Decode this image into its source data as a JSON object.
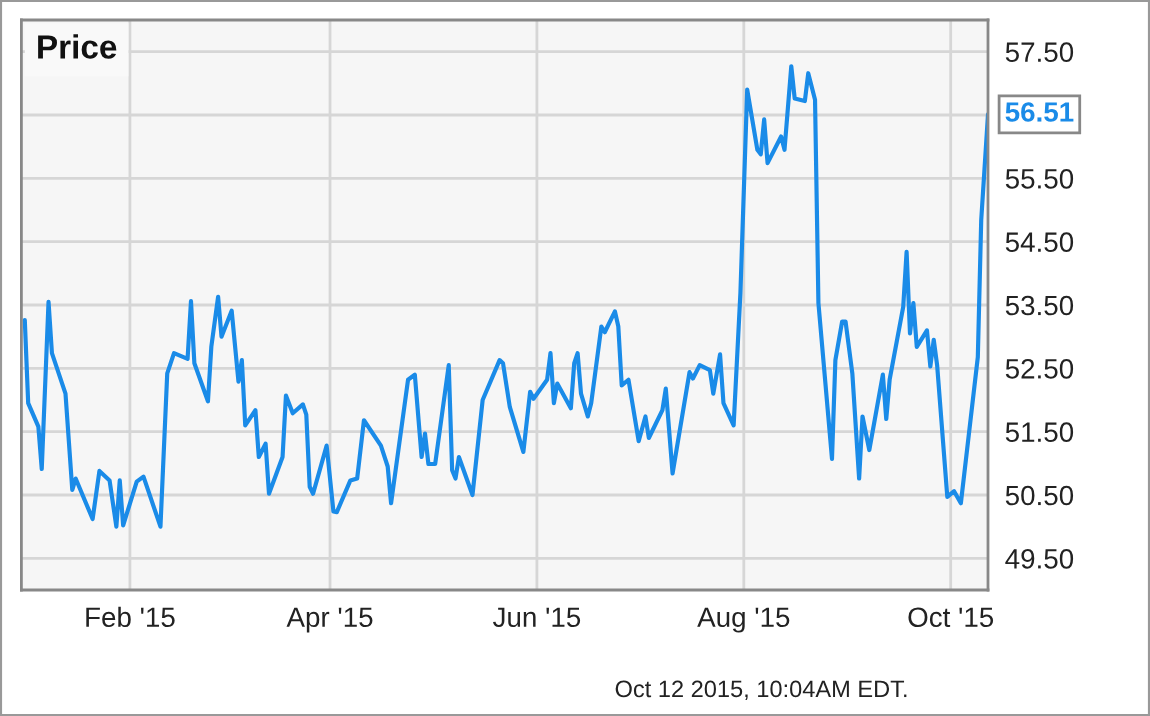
{
  "chart_data": {
    "type": "line",
    "title": "Price",
    "x": [
      "2015-01-01",
      "2015-01-02",
      "2015-01-05",
      "2015-01-06",
      "2015-01-08",
      "2015-01-09",
      "2015-01-13",
      "2015-01-15",
      "2015-01-16",
      "2015-01-21",
      "2015-01-23",
      "2015-01-26",
      "2015-01-28",
      "2015-01-29",
      "2015-01-30",
      "2015-02-03",
      "2015-02-05",
      "2015-02-10",
      "2015-02-12",
      "2015-02-14",
      "2015-02-18",
      "2015-02-19",
      "2015-02-20",
      "2015-02-24",
      "2015-02-25",
      "2015-02-27",
      "2015-02-28",
      "2015-03-03",
      "2015-03-05",
      "2015-03-06",
      "2015-03-07",
      "2015-03-10",
      "2015-03-11",
      "2015-03-13",
      "2015-03-14",
      "2015-03-18",
      "2015-03-19",
      "2015-03-21",
      "2015-03-24",
      "2015-03-25",
      "2015-03-26",
      "2015-03-27",
      "2015-03-31",
      "2015-04-02",
      "2015-04-03",
      "2015-04-07",
      "2015-04-09",
      "2015-04-11",
      "2015-04-16",
      "2015-04-18",
      "2015-04-19",
      "2015-04-24",
      "2015-04-26",
      "2015-04-28",
      "2015-04-29",
      "2015-04-30",
      "2015-05-02",
      "2015-05-06",
      "2015-05-07",
      "2015-05-08",
      "2015-05-09",
      "2015-05-13",
      "2015-05-16",
      "2015-05-21",
      "2015-05-22",
      "2015-05-24",
      "2015-05-28",
      "2015-05-30",
      "2015-05-31",
      "2015-06-04",
      "2015-06-05",
      "2015-06-06",
      "2015-06-07",
      "2015-06-11",
      "2015-06-12",
      "2015-06-13",
      "2015-06-14",
      "2015-06-16",
      "2015-06-17",
      "2015-06-20",
      "2015-06-21",
      "2015-06-24",
      "2015-06-25",
      "2015-06-26",
      "2015-06-28",
      "2015-07-01",
      "2015-07-03",
      "2015-07-04",
      "2015-07-08",
      "2015-07-09",
      "2015-07-11",
      "2015-07-16",
      "2015-07-17",
      "2015-07-19",
      "2015-07-22",
      "2015-07-23",
      "2015-07-25",
      "2015-07-26",
      "2015-07-29",
      "2015-07-31",
      "2015-08-02",
      "2015-08-05",
      "2015-08-06",
      "2015-08-07",
      "2015-08-08",
      "2015-08-12",
      "2015-08-13",
      "2015-08-15",
      "2015-08-16",
      "2015-08-19",
      "2015-08-20",
      "2015-08-22",
      "2015-08-23",
      "2015-08-27",
      "2015-08-28",
      "2015-08-30",
      "2015-08-31",
      "2015-09-02",
      "2015-09-04",
      "2015-09-05",
      "2015-09-07",
      "2015-09-11",
      "2015-09-12",
      "2015-09-13",
      "2015-09-17",
      "2015-09-18",
      "2015-09-19",
      "2015-09-20",
      "2015-09-21",
      "2015-09-24",
      "2015-09-25",
      "2015-09-26",
      "2015-09-27",
      "2015-09-30",
      "2015-10-02",
      "2015-10-04",
      "2015-10-09",
      "2015-10-10",
      "2015-10-12"
    ],
    "series": [
      {
        "color": "#1a8be8",
        "values": [
          53.26,
          51.95,
          51.58,
          50.91,
          53.55,
          52.74,
          52.1,
          50.58,
          50.76,
          50.12,
          50.88,
          50.73,
          50.0,
          50.73,
          50.02,
          50.71,
          50.79,
          50.0,
          52.42,
          52.74,
          52.65,
          53.56,
          52.58,
          51.98,
          52.84,
          53.63,
          53.0,
          53.41,
          52.29,
          52.63,
          51.6,
          51.84,
          51.1,
          51.31,
          50.52,
          51.1,
          52.07,
          51.79,
          51.93,
          51.77,
          50.63,
          50.52,
          51.28,
          50.24,
          50.23,
          50.73,
          50.76,
          51.68,
          51.28,
          50.95,
          50.37,
          52.32,
          52.4,
          51.1,
          51.47,
          50.99,
          50.99,
          52.55,
          50.89,
          50.76,
          51.1,
          50.5,
          52.0,
          52.63,
          52.58,
          51.89,
          51.18,
          52.13,
          52.02,
          52.32,
          52.74,
          51.95,
          52.26,
          51.87,
          52.58,
          52.74,
          52.1,
          51.74,
          51.95,
          53.16,
          53.07,
          53.4,
          53.16,
          52.23,
          52.32,
          51.35,
          51.74,
          51.4,
          51.84,
          52.18,
          50.84,
          52.44,
          52.34,
          52.55,
          52.47,
          52.1,
          52.72,
          51.95,
          51.6,
          53.69,
          56.9,
          55.95,
          55.88,
          56.43,
          55.74,
          56.16,
          55.95,
          57.27,
          56.76,
          56.72,
          57.16,
          56.74,
          53.53,
          51.07,
          52.63,
          53.24,
          53.24,
          52.42,
          50.76,
          51.74,
          51.21,
          52.4,
          51.7,
          52.32,
          53.47,
          54.34,
          53.05,
          53.53,
          52.84,
          53.1,
          52.53,
          52.95,
          52.55,
          50.47,
          50.56,
          50.37,
          52.68,
          54.84,
          56.51
        ]
      }
    ],
    "xlim": [
      "2014-12-31",
      "2015-10-12"
    ],
    "xticks": [
      {
        "value": "2015-02-01",
        "label": "Feb '15"
      },
      {
        "value": "2015-04-01",
        "label": "Apr '15"
      },
      {
        "value": "2015-06-01",
        "label": "Jun '15"
      },
      {
        "value": "2015-08-01",
        "label": "Aug '15"
      },
      {
        "value": "2015-10-01",
        "label": "Oct '15"
      }
    ],
    "ylim": [
      49.0,
      58.0
    ],
    "yticks": [
      {
        "value": 49.5,
        "label": "49.50"
      },
      {
        "value": 50.5,
        "label": "50.50"
      },
      {
        "value": 51.5,
        "label": "51.50"
      },
      {
        "value": 52.5,
        "label": "52.50"
      },
      {
        "value": 53.5,
        "label": "53.50"
      },
      {
        "value": 54.5,
        "label": "54.50"
      },
      {
        "value": 55.5,
        "label": "55.50"
      },
      {
        "value": 56.5,
        "label": null
      },
      {
        "value": 57.5,
        "label": "57.50"
      }
    ],
    "grid": true,
    "line_style": "solid",
    "marker": "none",
    "legend": false,
    "annotations": [
      {
        "text": "56.51",
        "x": "2015-10-12",
        "y": 56.51
      },
      "Oct 12 2015, 10:04AM EDT."
    ]
  }
}
